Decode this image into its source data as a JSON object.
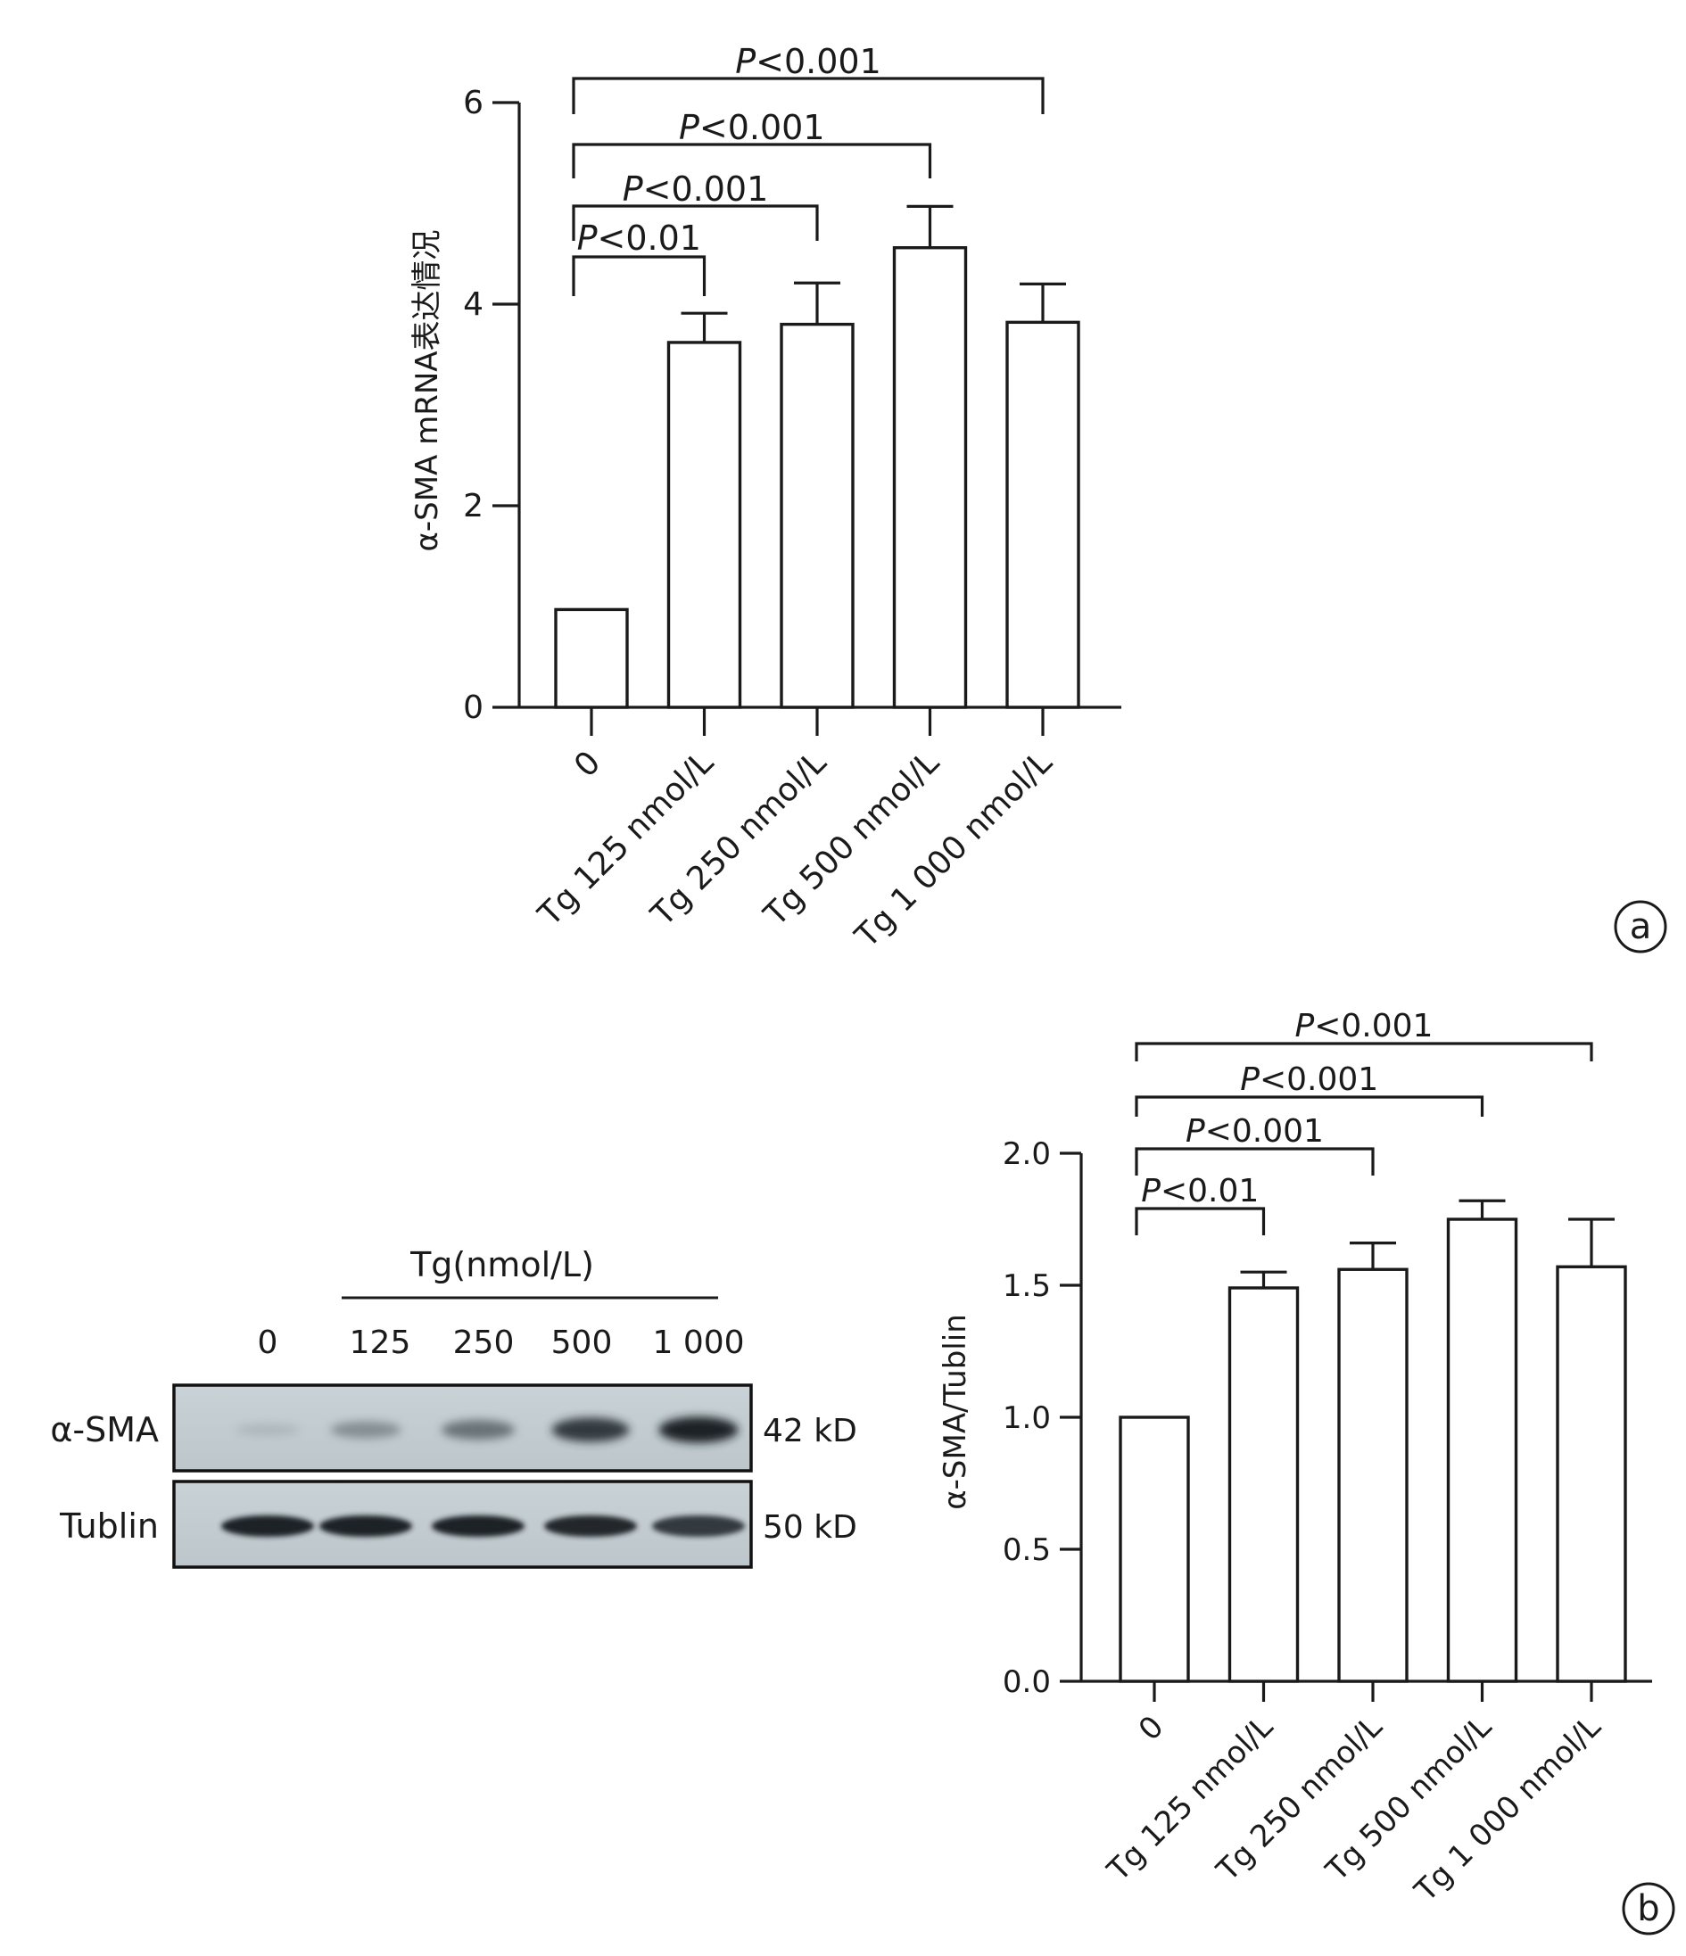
{
  "chart_data": [
    {
      "type": "bar",
      "panel_label": "a",
      "categories": [
        "0",
        "Tg 125 nmol/L",
        "Tg 250 nmol/L",
        "Tg 500 nmol/L",
        "Tg 1 000 nmol/L"
      ],
      "values": [
        0.97,
        3.62,
        3.8,
        4.56,
        3.82
      ],
      "errors": [
        0,
        0.29,
        0.41,
        0.41,
        0.38
      ],
      "title": "",
      "xlabel": "",
      "ylabel": "α-SMA mRNA表达情况",
      "ylim": [
        0,
        6
      ],
      "yticks": [
        "0",
        "2",
        "4",
        "6"
      ],
      "grid": false,
      "significance": [
        {
          "from": 0,
          "to": 1,
          "label_italic": "P",
          "label_rest": "<0.01"
        },
        {
          "from": 0,
          "to": 2,
          "label_italic": "P",
          "label_rest": "<0.001"
        },
        {
          "from": 0,
          "to": 3,
          "label_italic": "P",
          "label_rest": "<0.001"
        },
        {
          "from": 0,
          "to": 4,
          "label_italic": "P",
          "label_rest": "<0.001"
        }
      ]
    },
    {
      "type": "bar",
      "panel_label": "b",
      "categories": [
        "0",
        "Tg 125 nmol/L",
        "Tg 250 nmol/L",
        "Tg 500 nmol/L",
        "Tg 1 000 nmol/L"
      ],
      "values": [
        1.0,
        1.49,
        1.56,
        1.75,
        1.57
      ],
      "errors": [
        0,
        0.06,
        0.1,
        0.07,
        0.18
      ],
      "title": "",
      "xlabel": "",
      "ylabel": "α-SMA/Tublin",
      "ylim": [
        0,
        2.0
      ],
      "yticks": [
        "0.0",
        "0.5",
        "1.0",
        "1.5",
        "2.0"
      ],
      "grid": false,
      "significance": [
        {
          "from": 0,
          "to": 1,
          "label_italic": "P",
          "label_rest": "<0.01"
        },
        {
          "from": 0,
          "to": 2,
          "label_italic": "P",
          "label_rest": "<0.001"
        },
        {
          "from": 0,
          "to": 3,
          "label_italic": "P",
          "label_rest": "<0.001"
        },
        {
          "from": 0,
          "to": 4,
          "label_italic": "P",
          "label_rest": "<0.001"
        }
      ]
    }
  ],
  "blot": {
    "group_label": "Tg(nmol/L)",
    "lanes": [
      "0",
      "125",
      "250",
      "500",
      "1 000"
    ],
    "rows": [
      {
        "name": "α-SMA",
        "size": "42 kD",
        "intensity": [
          0.15,
          0.45,
          0.6,
          0.85,
          0.95
        ]
      },
      {
        "name": "Tublin",
        "size": "50 kD",
        "intensity": [
          0.95,
          0.95,
          0.95,
          0.92,
          0.85
        ]
      }
    ]
  },
  "panel_labels": [
    "a",
    "b"
  ]
}
